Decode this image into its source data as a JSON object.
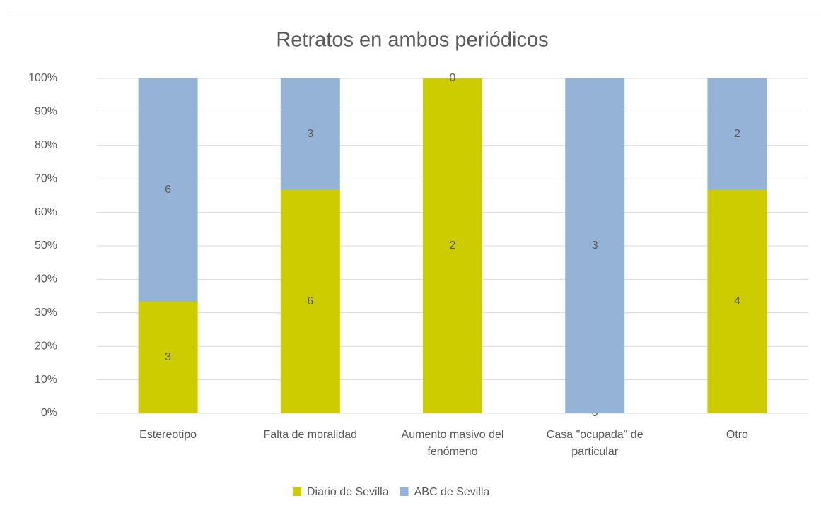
{
  "chart_data": {
    "type": "bar",
    "stacking": "percent",
    "title": "Retratos en ambos periódicos",
    "categories": [
      "Estereotipo",
      "Falta de moralidad",
      "Aumento masivo del fenómeno",
      "Casa \"ocupada\" de particular",
      "Otro"
    ],
    "series": [
      {
        "name": "Diario de Sevilla",
        "color": "#cccc00",
        "values": [
          3,
          6,
          2,
          0,
          4
        ]
      },
      {
        "name": "ABC de Sevilla",
        "color": "#95b3d7",
        "values": [
          6,
          3,
          0,
          3,
          2
        ]
      }
    ],
    "ylim": [
      0,
      100
    ],
    "yticks": [
      {
        "value": 0,
        "label": "0%"
      },
      {
        "value": 10,
        "label": "10%"
      },
      {
        "value": 20,
        "label": "20%"
      },
      {
        "value": 30,
        "label": "30%"
      },
      {
        "value": 40,
        "label": "40%"
      },
      {
        "value": 50,
        "label": "50%"
      },
      {
        "value": 60,
        "label": "60%"
      },
      {
        "value": 70,
        "label": "70%"
      },
      {
        "value": 80,
        "label": "80%"
      },
      {
        "value": 90,
        "label": "90%"
      },
      {
        "value": 100,
        "label": "100%"
      }
    ],
    "grid": true,
    "legend": "bottom"
  }
}
